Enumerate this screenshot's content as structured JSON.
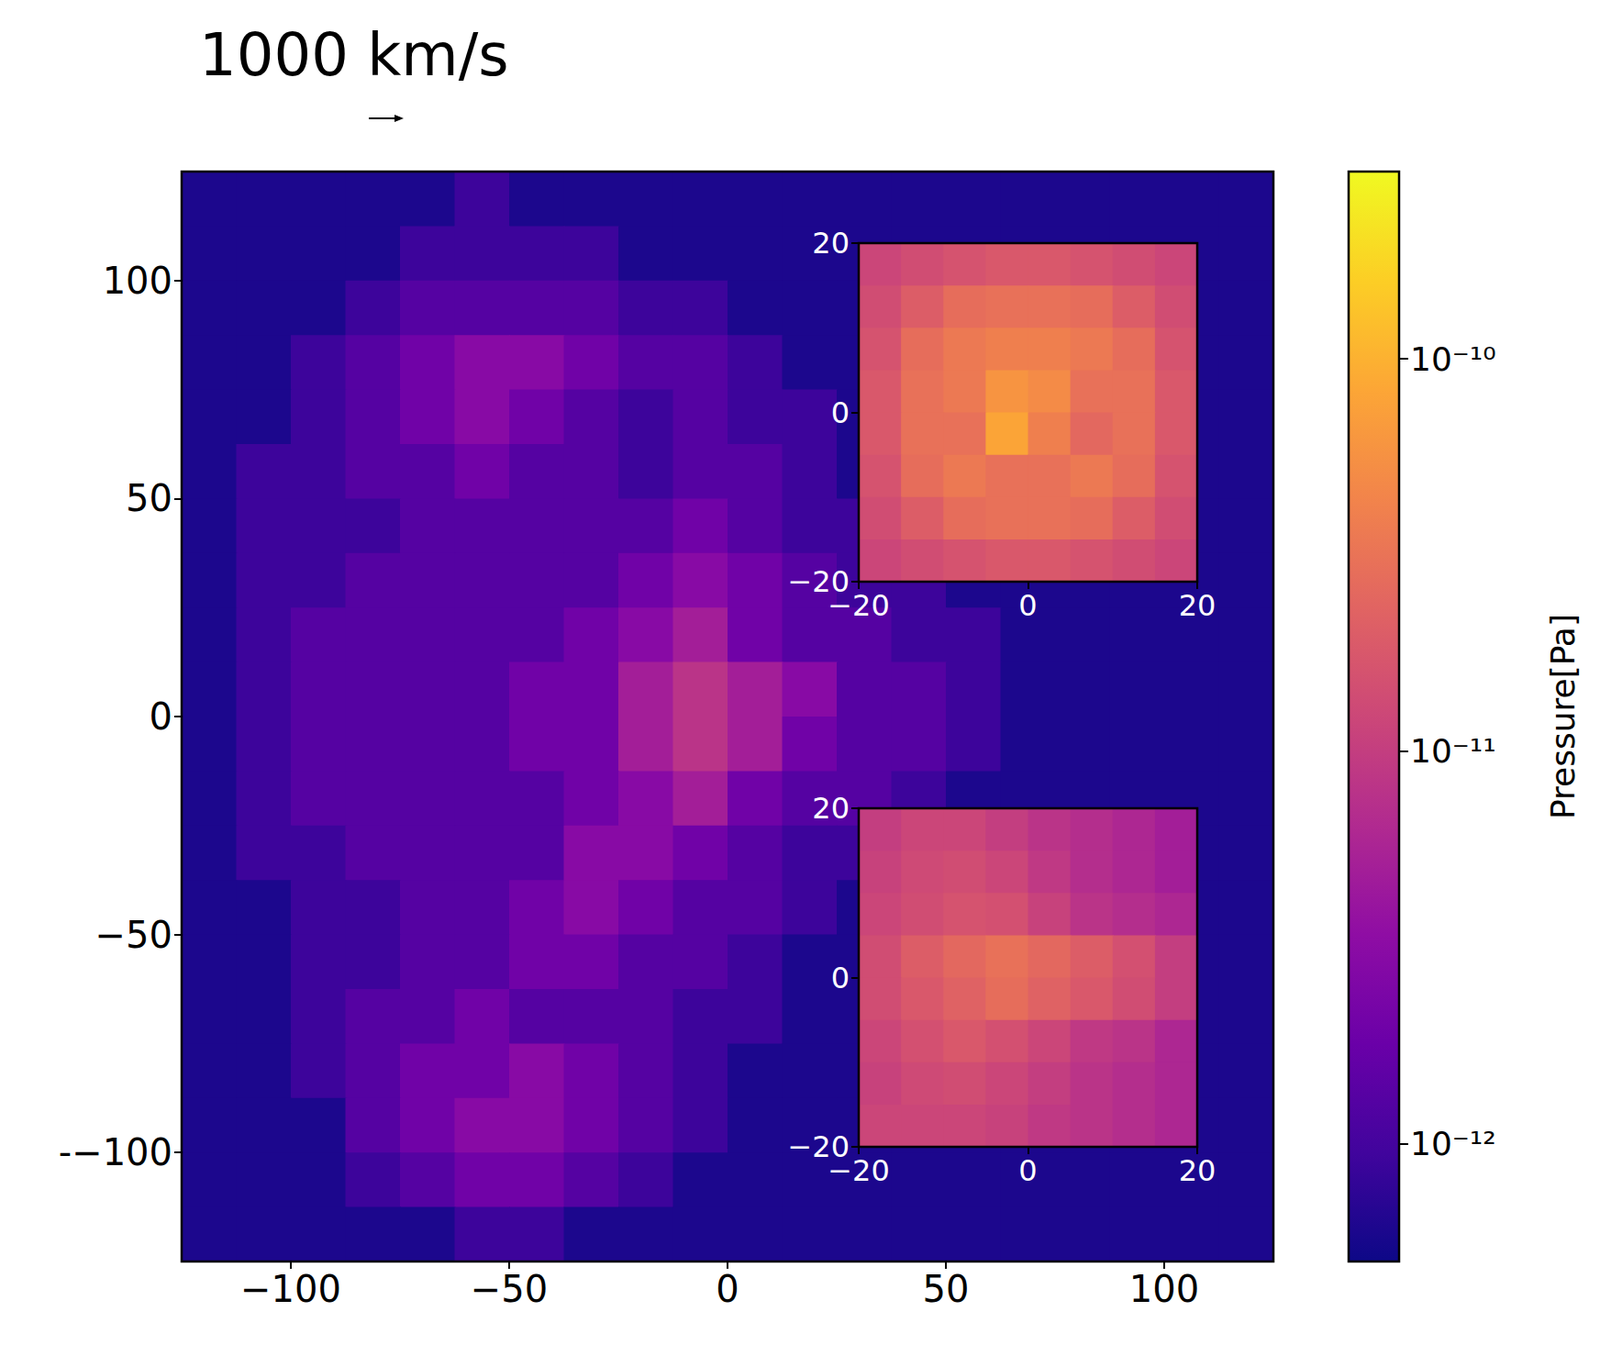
{
  "chart_data": [
    {
      "type": "heatmap",
      "annotation": "1000 km/s",
      "xlim": [
        -125,
        125
      ],
      "ylim": [
        -125,
        125
      ],
      "xticks": [
        {
          "value": -100,
          "label": "−100"
        },
        {
          "value": -50,
          "label": "−50"
        },
        0,
        50,
        100
      ],
      "yticks": [
        {
          "value": -100,
          "label": "-−100"
        },
        {
          "value": -50,
          "label": "−50"
        },
        0,
        50,
        100
      ],
      "x": [
        -118.75,
        -106.25,
        -93.75,
        -81.25,
        -68.75,
        -56.25,
        -43.75,
        -31.25,
        -18.75,
        -6.25,
        6.25,
        18.75,
        31.25,
        43.75,
        56.25,
        68.75,
        81.25,
        93.75,
        106.25,
        118.75
      ],
      "y": [
        118.75,
        106.25,
        93.75,
        81.25,
        68.75,
        56.25,
        43.75,
        31.25,
        18.75,
        6.25,
        -6.25,
        -18.75,
        -31.25,
        -43.75,
        -56.25,
        -68.75,
        -81.25,
        -93.75,
        -106.25,
        -118.75
      ],
      "cells": [
        [
          6e-13,
          6e-13,
          6e-13,
          6e-13,
          6e-13,
          9e-13,
          6e-13,
          6e-13,
          6e-13,
          6e-13,
          6e-13,
          6e-13,
          6e-13,
          6e-13,
          6e-13,
          6e-13,
          6e-13,
          6e-13,
          6e-13,
          6e-13
        ],
        [
          6e-13,
          6e-13,
          6e-13,
          6e-13,
          9e-13,
          9e-13,
          9e-13,
          9e-13,
          6e-13,
          6e-13,
          6e-13,
          6e-13,
          6e-13,
          6e-13,
          6e-13,
          6e-13,
          6e-13,
          6e-13,
          6e-13,
          6e-13
        ],
        [
          6e-13,
          6e-13,
          6e-13,
          9e-13,
          1.3e-12,
          1.3e-12,
          1.3e-12,
          1.3e-12,
          9e-13,
          9e-13,
          6e-13,
          6e-13,
          6e-13,
          6e-13,
          6e-13,
          6e-13,
          6e-13,
          6e-13,
          6e-13,
          6e-13
        ],
        [
          6e-13,
          6e-13,
          9e-13,
          1.3e-12,
          2e-12,
          3e-12,
          3e-12,
          2e-12,
          1.3e-12,
          1.3e-12,
          9e-13,
          6e-13,
          6e-13,
          6e-13,
          6e-13,
          6e-13,
          6e-13,
          6e-13,
          6e-13,
          6e-13
        ],
        [
          6e-13,
          6e-13,
          9e-13,
          1.3e-12,
          2e-12,
          3e-12,
          2e-12,
          1.3e-12,
          9e-13,
          1.3e-12,
          9e-13,
          9e-13,
          6e-13,
          6e-13,
          6e-13,
          6e-13,
          6e-13,
          6e-13,
          6e-13,
          6e-13
        ],
        [
          6e-13,
          9e-13,
          9e-13,
          1.3e-12,
          1.3e-12,
          2e-12,
          1.3e-12,
          1.3e-12,
          9e-13,
          1.3e-12,
          1.3e-12,
          9e-13,
          6e-13,
          6e-13,
          6e-13,
          6e-13,
          6e-13,
          6e-13,
          6e-13,
          6e-13
        ],
        [
          6e-13,
          9e-13,
          9e-13,
          9e-13,
          1.3e-12,
          1.3e-12,
          1.3e-12,
          1.3e-12,
          1.3e-12,
          2e-12,
          1.3e-12,
          9e-13,
          9e-13,
          6e-13,
          6e-13,
          6e-13,
          6e-13,
          6e-13,
          6e-13,
          6e-13
        ],
        [
          6e-13,
          9e-13,
          9e-13,
          1.3e-12,
          1.3e-12,
          1.3e-12,
          1.3e-12,
          1.3e-12,
          2e-12,
          3e-12,
          2e-12,
          1.3e-12,
          9e-13,
          9e-13,
          6e-13,
          6e-13,
          6e-13,
          6e-13,
          6e-13,
          6e-13
        ],
        [
          6e-13,
          9e-13,
          1.3e-12,
          1.3e-12,
          1.3e-12,
          1.3e-12,
          1.3e-12,
          2e-12,
          3e-12,
          5e-12,
          2e-12,
          1.3e-12,
          1.3e-12,
          9e-13,
          9e-13,
          6e-13,
          6e-13,
          6e-13,
          6e-13,
          6e-13
        ],
        [
          6e-13,
          9e-13,
          1.3e-12,
          1.3e-12,
          1.3e-12,
          1.3e-12,
          2e-12,
          2e-12,
          5e-12,
          8e-12,
          5e-12,
          3e-12,
          1.3e-12,
          1.3e-12,
          9e-13,
          6e-13,
          6e-13,
          6e-13,
          6e-13,
          6e-13
        ],
        [
          6e-13,
          9e-13,
          1.3e-12,
          1.3e-12,
          1.3e-12,
          1.3e-12,
          2e-12,
          2e-12,
          5e-12,
          8e-12,
          5e-12,
          2e-12,
          1.3e-12,
          1.3e-12,
          9e-13,
          6e-13,
          6e-13,
          6e-13,
          6e-13,
          6e-13
        ],
        [
          6e-13,
          9e-13,
          1.3e-12,
          1.3e-12,
          1.3e-12,
          1.3e-12,
          1.3e-12,
          2e-12,
          3e-12,
          5e-12,
          2e-12,
          1.3e-12,
          1.3e-12,
          9e-13,
          6e-13,
          6e-13,
          6e-13,
          6e-13,
          6e-13,
          6e-13
        ],
        [
          6e-13,
          9e-13,
          9e-13,
          1.3e-12,
          1.3e-12,
          1.3e-12,
          1.3e-12,
          3e-12,
          3e-12,
          2e-12,
          1.3e-12,
          9e-13,
          9e-13,
          6e-13,
          6e-13,
          6e-13,
          6e-13,
          6e-13,
          6e-13,
          6e-13
        ],
        [
          6e-13,
          6e-13,
          9e-13,
          9e-13,
          1.3e-12,
          1.3e-12,
          2e-12,
          3e-12,
          2e-12,
          1.3e-12,
          1.3e-12,
          9e-13,
          6e-13,
          6e-13,
          6e-13,
          6e-13,
          6e-13,
          6e-13,
          6e-13,
          6e-13
        ],
        [
          6e-13,
          6e-13,
          9e-13,
          9e-13,
          1.3e-12,
          1.3e-12,
          2e-12,
          2e-12,
          1.3e-12,
          1.3e-12,
          9e-13,
          6e-13,
          6e-13,
          6e-13,
          6e-13,
          6e-13,
          6e-13,
          6e-13,
          6e-13,
          6e-13
        ],
        [
          6e-13,
          6e-13,
          9e-13,
          1.3e-12,
          1.3e-12,
          2e-12,
          1.3e-12,
          1.3e-12,
          1.3e-12,
          9e-13,
          9e-13,
          6e-13,
          6e-13,
          6e-13,
          6e-13,
          6e-13,
          6e-13,
          6e-13,
          6e-13,
          6e-13
        ],
        [
          6e-13,
          6e-13,
          9e-13,
          1.3e-12,
          2e-12,
          2e-12,
          3e-12,
          2e-12,
          1.3e-12,
          9e-13,
          6e-13,
          6e-13,
          6e-13,
          6e-13,
          6e-13,
          6e-13,
          6e-13,
          6e-13,
          6e-13,
          6e-13
        ],
        [
          6e-13,
          6e-13,
          6e-13,
          1.3e-12,
          2e-12,
          3e-12,
          3e-12,
          2e-12,
          1.3e-12,
          9e-13,
          6e-13,
          6e-13,
          6e-13,
          6e-13,
          6e-13,
          6e-13,
          6e-13,
          6e-13,
          6e-13,
          6e-13
        ],
        [
          6e-13,
          6e-13,
          6e-13,
          9e-13,
          1.3e-12,
          2e-12,
          2e-12,
          1.3e-12,
          9e-13,
          6e-13,
          6e-13,
          6e-13,
          6e-13,
          6e-13,
          6e-13,
          6e-13,
          6e-13,
          6e-13,
          6e-13,
          6e-13
        ],
        [
          6e-13,
          6e-13,
          6e-13,
          6e-13,
          6e-13,
          9e-13,
          9e-13,
          6e-13,
          6e-13,
          6e-13,
          6e-13,
          6e-13,
          6e-13,
          6e-13,
          6e-13,
          6e-13,
          6e-13,
          6e-13,
          6e-13,
          6e-13
        ]
      ],
      "colorbar": {
        "label": "Pressure[Pa]",
        "range": [
          5e-13,
          3e-10
        ],
        "ticks": [
          {
            "value": 1e-12,
            "label": "10⁻¹²"
          },
          {
            "value": 1e-11,
            "label": "10⁻¹¹"
          },
          {
            "value": 1e-10,
            "label": "10⁻¹⁰"
          }
        ]
      }
    },
    {
      "type": "heatmap",
      "xlim": [
        -20,
        20
      ],
      "ylim": [
        -20,
        20
      ],
      "xticks": [
        {
          "value": -20,
          "label": "−20"
        },
        0,
        20
      ],
      "yticks": [
        {
          "value": -20,
          "label": "−20"
        },
        0,
        20
      ],
      "x": [
        -17.5,
        -12.5,
        -7.5,
        -2.5,
        2.5,
        7.5,
        12.5,
        17.5
      ],
      "y": [
        17.5,
        12.5,
        7.5,
        2.5,
        -2.5,
        -7.5,
        -12.5,
        -17.5
      ],
      "cells": [
        [
          1.2e-11,
          1.4e-11,
          1.6e-11,
          1.8e-11,
          1.8e-11,
          1.6e-11,
          1.4e-11,
          1.2e-11
        ],
        [
          1.4e-11,
          2e-11,
          2.8e-11,
          3e-11,
          3e-11,
          2.8e-11,
          2e-11,
          1.4e-11
        ],
        [
          1.6e-11,
          2.8e-11,
          3.5e-11,
          4e-11,
          4e-11,
          3.5e-11,
          2.8e-11,
          1.6e-11
        ],
        [
          1.8e-11,
          3e-11,
          3.5e-11,
          6e-11,
          5e-11,
          3e-11,
          3e-11,
          1.8e-11
        ],
        [
          1.8e-11,
          3e-11,
          3e-11,
          8e-11,
          4e-11,
          2.5e-11,
          3e-11,
          1.8e-11
        ],
        [
          1.6e-11,
          2.8e-11,
          3.5e-11,
          3e-11,
          3e-11,
          3.5e-11,
          2.8e-11,
          1.6e-11
        ],
        [
          1.4e-11,
          2e-11,
          2.8e-11,
          3e-11,
          3e-11,
          2.8e-11,
          2e-11,
          1.4e-11
        ],
        [
          1.2e-11,
          1.4e-11,
          1.6e-11,
          1.8e-11,
          1.8e-11,
          1.6e-11,
          1.4e-11,
          1.2e-11
        ]
      ]
    },
    {
      "type": "heatmap",
      "xlim": [
        -20,
        20
      ],
      "ylim": [
        -20,
        20
      ],
      "xticks": [
        {
          "value": -20,
          "label": "−20"
        },
        0,
        20
      ],
      "yticks": [
        {
          "value": -20,
          "label": "−20"
        },
        0,
        20
      ],
      "x": [
        -17.5,
        -12.5,
        -7.5,
        -2.5,
        2.5,
        7.5,
        12.5,
        17.5
      ],
      "y": [
        17.5,
        12.5,
        7.5,
        2.5,
        -2.5,
        -7.5,
        -12.5,
        -17.5
      ],
      "cells": [
        [
          1e-11,
          1.2e-11,
          1.2e-11,
          1e-11,
          8e-12,
          7e-12,
          6e-12,
          5e-12
        ],
        [
          1.1e-11,
          1.3e-11,
          1.4e-11,
          1.2e-11,
          9e-12,
          7e-12,
          6e-12,
          5e-12
        ],
        [
          1.2e-11,
          1.4e-11,
          1.6e-11,
          1.5e-11,
          1.1e-11,
          8e-12,
          7e-12,
          6e-12
        ],
        [
          1.4e-11,
          2e-11,
          2.5e-11,
          3e-11,
          2.5e-11,
          2e-11,
          1.5e-11,
          1e-11
        ],
        [
          1.4e-11,
          1.8e-11,
          2.2e-11,
          2.8e-11,
          2.2e-11,
          1.8e-11,
          1.4e-11,
          1e-11
        ],
        [
          1.2e-11,
          1.5e-11,
          1.8e-11,
          1.5e-11,
          1.2e-11,
          9e-12,
          8e-12,
          6e-12
        ],
        [
          1.1e-11,
          1.3e-11,
          1.4e-11,
          1.2e-11,
          1e-11,
          8e-12,
          7e-12,
          6e-12
        ],
        [
          1.2e-11,
          1.2e-11,
          1.2e-11,
          1.1e-11,
          9e-12,
          8e-12,
          7e-12,
          6e-12
        ]
      ]
    }
  ]
}
